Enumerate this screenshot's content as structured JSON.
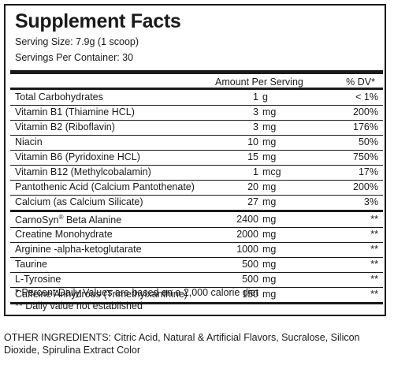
{
  "title": "Supplement Facts",
  "serving_size": "Serving Size:  7.9g  (1 scoop)",
  "servings_per_container": "Servings Per Container: 30",
  "columns": {
    "amount": "Amount Per Serving",
    "dv": "% DV*"
  },
  "rows": [
    {
      "name": "Total Carbohydrates",
      "amount": "1",
      "unit": "g",
      "dv": "< 1%"
    },
    {
      "name": "Vitamin B1 (Thiamine HCL)",
      "amount": "3",
      "unit": "mg",
      "dv": "200%"
    },
    {
      "name": "Vitamin B2 (Riboflavin)",
      "amount": "3",
      "unit": "mg",
      "dv": "176%"
    },
    {
      "name": "Niacin",
      "amount": "10",
      "unit": "mg",
      "dv": "50%"
    },
    {
      "name": "Vitamin B6 (Pyridoxine HCL)",
      "amount": "15",
      "unit": "mg",
      "dv": "750%"
    },
    {
      "name": "Vitamin B12 (Methylcobalamin)",
      "amount": "1",
      "unit": "mcg",
      "dv": "17%"
    },
    {
      "name": "Pantothenic Acid (Calcium Pantothenate)",
      "amount": "20",
      "unit": "mg",
      "dv": "200%"
    },
    {
      "name": "Calcium (as Calcium Silicate)",
      "amount": "27",
      "unit": "mg",
      "dv": "3%"
    },
    {
      "name": "CarnoSyn",
      "sup": "®",
      "name_rest": " Beta Alanine",
      "amount": "2400",
      "unit": "mg",
      "dv": "**"
    },
    {
      "name": "Creatine Monohydrate",
      "amount": "2000",
      "unit": "mg",
      "dv": "**"
    },
    {
      "name": "Arginine -alpha-ketoglutarate",
      "amount": "1000",
      "unit": "mg",
      "dv": "**"
    },
    {
      "name": "Taurine",
      "amount": "500",
      "unit": "mg",
      "dv": "**"
    },
    {
      "name": "L-Tyrosine",
      "amount": "500",
      "unit": "mg",
      "dv": "**"
    },
    {
      "name": "Caffeine Anhydrous (Trimethylxanthine)",
      "amount": "150",
      "unit": "mg",
      "dv": "**"
    }
  ],
  "footnotes": {
    "percent_dv": "* Percent Daily Values are based on a 2,000 calorie diet",
    "not_established": "** Daily value not established"
  },
  "other_ingredients": "OTHER INGREDIENTS: Citric Acid, Natural & Artificial Flavors, Sucralose, Silicon Dioxide, Spirulina Extract Color"
}
